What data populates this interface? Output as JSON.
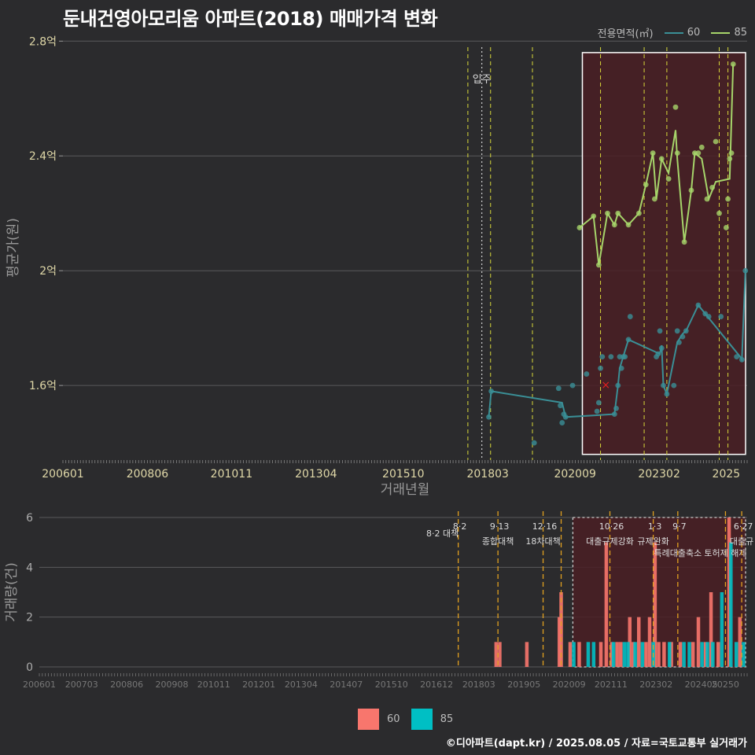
{
  "title": "둔내건영아모리움 아파트(2018) 매매가격 변화",
  "legend": {
    "label": "전용면적(㎡)",
    "series": [
      {
        "name": "60",
        "color": "#3a8f96"
      },
      {
        "name": "85",
        "color": "#a6d46a"
      }
    ]
  },
  "bottom_legend": [
    {
      "name": "60",
      "color": "#f8766d"
    },
    {
      "name": "85",
      "color": "#00bfc4"
    }
  ],
  "credit": "©디아파트(dapt.kr) / 2025.08.05 / 자료=국토교통부 실거래가",
  "chart_data": [
    {
      "type": "line",
      "title": "둔내건영아모리움 아파트(2018) 매매가격 변화",
      "xlabel": "거래년월",
      "ylabel": "평균가(원)",
      "xlim": [
        2006.0,
        2025.6
      ],
      "ylim": [
        1.34,
        2.82
      ],
      "x_ticks": [
        2006.0,
        2008.42,
        2010.83,
        2013.25,
        2015.75,
        2018.17,
        2020.67,
        2023.08,
        2025.0
      ],
      "x_tick_labels": [
        "200601",
        "200806",
        "201011",
        "201304",
        "201510",
        "201803",
        "202009",
        "202302",
        "2025"
      ],
      "y_ticks": [
        1.6,
        2.0,
        2.4,
        2.8
      ],
      "y_tick_labels": [
        "1.6억",
        "2억",
        "2.4억",
        "2.8억"
      ],
      "annotation": {
        "x": 2018.0,
        "label": "입주"
      },
      "policy_lines": [
        2017.6,
        2018.25,
        2019.45,
        2021.4,
        2022.65,
        2023.3,
        2024.8,
        2025.05
      ],
      "highlight": {
        "x_from": 2020.7,
        "x_to": 2025.6,
        "y_from": 1.36,
        "y_to": 2.76
      },
      "marker_x": {
        "x": 2021.55,
        "y": 1.6
      },
      "series": [
        {
          "name": "60",
          "color": "#3a8f96",
          "points": [
            [
              2018.2,
              1.49
            ],
            [
              2018.27,
              1.58
            ],
            [
              2019.5,
              1.4
            ],
            [
              2020.2,
              1.59
            ],
            [
              2020.25,
              1.53
            ],
            [
              2020.3,
              1.47
            ],
            [
              2020.35,
              1.5
            ],
            [
              2020.4,
              1.49
            ],
            [
              2020.6,
              1.6
            ],
            [
              2021.0,
              1.64
            ],
            [
              2021.3,
              1.51
            ],
            [
              2021.35,
              1.54
            ],
            [
              2021.4,
              1.66
            ],
            [
              2021.45,
              1.7
            ],
            [
              2021.7,
              1.7
            ],
            [
              2021.8,
              1.5
            ],
            [
              2021.85,
              1.52
            ],
            [
              2021.9,
              1.6
            ],
            [
              2021.95,
              1.7
            ],
            [
              2022.0,
              1.66
            ],
            [
              2022.05,
              1.7
            ],
            [
              2022.1,
              1.7
            ],
            [
              2022.2,
              1.76
            ],
            [
              2022.25,
              1.84
            ],
            [
              2023.0,
              1.7
            ],
            [
              2023.05,
              1.71
            ],
            [
              2023.1,
              1.79
            ],
            [
              2023.15,
              1.73
            ],
            [
              2023.2,
              1.6
            ],
            [
              2023.3,
              1.57
            ],
            [
              2023.5,
              1.6
            ],
            [
              2023.6,
              1.79
            ],
            [
              2023.65,
              1.75
            ],
            [
              2023.75,
              1.77
            ],
            [
              2023.85,
              1.79
            ],
            [
              2024.2,
              1.88
            ],
            [
              2024.4,
              1.85
            ],
            [
              2024.5,
              1.84
            ],
            [
              2024.85,
              1.84
            ],
            [
              2025.3,
              1.7
            ],
            [
              2025.45,
              1.69
            ],
            [
              2025.55,
              2.0
            ]
          ],
          "path": [
            [
              2018.2,
              1.49
            ],
            [
              2018.27,
              1.58
            ],
            [
              2020.3,
              1.54
            ],
            [
              2020.4,
              1.49
            ],
            [
              2021.8,
              1.5
            ],
            [
              2021.9,
              1.6
            ],
            [
              2021.95,
              1.66
            ],
            [
              2022.05,
              1.7
            ],
            [
              2022.2,
              1.76
            ],
            [
              2023.1,
              1.71
            ],
            [
              2023.15,
              1.74
            ],
            [
              2023.2,
              1.6
            ],
            [
              2023.3,
              1.57
            ],
            [
              2023.6,
              1.75
            ],
            [
              2023.75,
              1.78
            ],
            [
              2023.85,
              1.79
            ],
            [
              2024.2,
              1.88
            ],
            [
              2024.4,
              1.85
            ],
            [
              2025.4,
              1.7
            ],
            [
              2025.45,
              1.69
            ],
            [
              2025.55,
              2.0
            ]
          ]
        },
        {
          "name": "85",
          "color": "#a6d46a",
          "points": [
            [
              2020.8,
              2.15
            ],
            [
              2021.2,
              2.19
            ],
            [
              2021.35,
              2.02
            ],
            [
              2021.6,
              2.2
            ],
            [
              2021.8,
              2.16
            ],
            [
              2021.9,
              2.2
            ],
            [
              2022.2,
              2.16
            ],
            [
              2022.5,
              2.2
            ],
            [
              2022.7,
              2.3
            ],
            [
              2022.9,
              2.41
            ],
            [
              2022.95,
              2.25
            ],
            [
              2023.15,
              2.39
            ],
            [
              2023.35,
              2.32
            ],
            [
              2023.55,
              2.57
            ],
            [
              2023.6,
              2.41
            ],
            [
              2023.8,
              2.1
            ],
            [
              2024.0,
              2.28
            ],
            [
              2024.1,
              2.41
            ],
            [
              2024.2,
              2.41
            ],
            [
              2024.3,
              2.43
            ],
            [
              2024.45,
              2.25
            ],
            [
              2024.6,
              2.29
            ],
            [
              2024.7,
              2.45
            ],
            [
              2024.8,
              2.2
            ],
            [
              2025.0,
              2.15
            ],
            [
              2025.05,
              2.25
            ],
            [
              2025.1,
              2.39
            ],
            [
              2025.15,
              2.41
            ],
            [
              2025.2,
              2.72
            ]
          ],
          "path": [
            [
              2020.8,
              2.15
            ],
            [
              2021.2,
              2.19
            ],
            [
              2021.35,
              2.02
            ],
            [
              2021.6,
              2.2
            ],
            [
              2021.8,
              2.16
            ],
            [
              2021.9,
              2.2
            ],
            [
              2022.2,
              2.16
            ],
            [
              2022.5,
              2.2
            ],
            [
              2022.7,
              2.3
            ],
            [
              2022.9,
              2.41
            ],
            [
              2023.0,
              2.25
            ],
            [
              2023.15,
              2.39
            ],
            [
              2023.35,
              2.34
            ],
            [
              2023.55,
              2.49
            ],
            [
              2023.6,
              2.39
            ],
            [
              2023.8,
              2.1
            ],
            [
              2024.0,
              2.28
            ],
            [
              2024.1,
              2.41
            ],
            [
              2024.3,
              2.39
            ],
            [
              2024.5,
              2.25
            ],
            [
              2024.7,
              2.31
            ],
            [
              2025.1,
              2.32
            ],
            [
              2025.2,
              2.72
            ]
          ]
        }
      ]
    },
    {
      "type": "bar",
      "xlabel": "",
      "ylabel": "거래량(건)",
      "xlim": [
        2006.0,
        2025.6
      ],
      "ylim": [
        0,
        6
      ],
      "y_ticks": [
        0,
        2,
        4,
        6
      ],
      "y_tick_labels": [
        "0",
        "2",
        "4",
        "6"
      ],
      "x_ticks": [
        2006.0,
        2007.17,
        2008.42,
        2009.67,
        2010.83,
        2012.08,
        2013.25,
        2014.5,
        2015.75,
        2017.0,
        2018.17,
        2019.42,
        2020.67,
        2021.83,
        2023.08,
        2024.33,
        2025.0
      ],
      "x_tick_labels": [
        "200601",
        "200703",
        "200806",
        "200908",
        "201011",
        "201201",
        "201304",
        "201407",
        "201510",
        "201612",
        "201803",
        "201905",
        "202009",
        "202111",
        "202302",
        "202405",
        "20250"
      ],
      "policy_lines": [
        {
          "x": 2017.6,
          "date": "8·2",
          "label": "8·2 대책"
        },
        {
          "x": 2018.7,
          "date": "9·13",
          "label": "종합대책"
        },
        {
          "x": 2019.95,
          "date": "12·16",
          "label": "18차대책"
        },
        {
          "x": 2020.45,
          "date": "",
          "label": ""
        },
        {
          "x": 2021.8,
          "date": "10·26",
          "label": "대출규제강화"
        },
        {
          "x": 2023.0,
          "date": "1·3",
          "label": "규제완화"
        },
        {
          "x": 2023.68,
          "date": "9·7",
          "label": "특례대출축소"
        },
        {
          "x": 2025.0,
          "date": "",
          "label": "토허제 해제"
        },
        {
          "x": 2025.45,
          "date": "6·27",
          "label": "대출규"
        }
      ],
      "highlight": {
        "x_from": 2020.6,
        "x_to": 2025.6
      },
      "series": [
        {
          "name": "60",
          "color": "#f8766d",
          "bars": [
            [
              2018.65,
              1
            ],
            [
              2018.75,
              1
            ],
            [
              2019.5,
              1
            ],
            [
              2020.4,
              2
            ],
            [
              2020.45,
              3
            ],
            [
              2020.7,
              1
            ],
            [
              2020.95,
              1
            ],
            [
              2021.55,
              1
            ],
            [
              2021.7,
              5
            ],
            [
              2021.85,
              1
            ],
            [
              2022.0,
              1
            ],
            [
              2022.1,
              1
            ],
            [
              2022.35,
              2
            ],
            [
              2022.45,
              1
            ],
            [
              2022.6,
              2
            ],
            [
              2022.8,
              1
            ],
            [
              2022.9,
              2
            ],
            [
              2023.05,
              5
            ],
            [
              2023.15,
              1
            ],
            [
              2023.3,
              1
            ],
            [
              2023.5,
              1
            ],
            [
              2023.75,
              1
            ],
            [
              2024.1,
              1
            ],
            [
              2024.25,
              2
            ],
            [
              2024.45,
              1
            ],
            [
              2024.6,
              3
            ],
            [
              2024.8,
              1
            ],
            [
              2025.1,
              6
            ],
            [
              2025.4,
              2
            ]
          ]
        },
        {
          "name": "85",
          "color": "#00bfc4",
          "bars": [
            [
              2020.8,
              1
            ],
            [
              2021.2,
              1
            ],
            [
              2021.35,
              1
            ],
            [
              2021.9,
              1
            ],
            [
              2022.2,
              1
            ],
            [
              2022.3,
              1
            ],
            [
              2022.5,
              1
            ],
            [
              2022.7,
              1
            ],
            [
              2023.0,
              1
            ],
            [
              2023.45,
              1
            ],
            [
              2023.85,
              1
            ],
            [
              2024.0,
              1
            ],
            [
              2024.35,
              1
            ],
            [
              2024.5,
              1
            ],
            [
              2024.65,
              1
            ],
            [
              2024.9,
              3
            ],
            [
              2025.15,
              5
            ],
            [
              2025.3,
              1
            ],
            [
              2025.5,
              1
            ]
          ]
        }
      ]
    }
  ]
}
